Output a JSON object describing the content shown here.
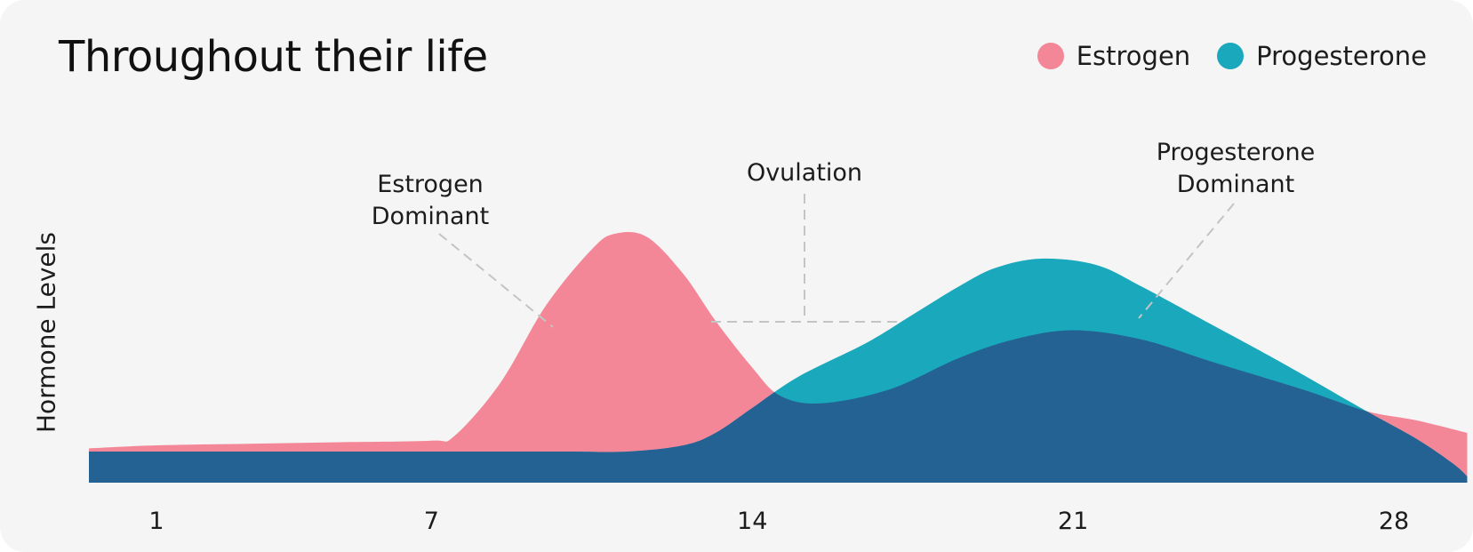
{
  "chart_data": {
    "type": "area",
    "title": "Throughout their life",
    "ylabel": "Hormone Levels",
    "xlabel": "",
    "xlim": [
      1,
      29
    ],
    "ylim": [
      0,
      1
    ],
    "x_ticks": [
      1,
      7,
      14,
      21,
      28
    ],
    "grid": false,
    "legend_position": "top-right",
    "colors": {
      "estrogen": "#f38797",
      "progesterone": "#1aa8bc",
      "overlap": "#236293",
      "annotation_line": "#c4c4c4",
      "background": "#f5f5f5"
    },
    "series": [
      {
        "name": "Estrogen",
        "x": [
          -0.5,
          1,
          3,
          5,
          7,
          7.5,
          8.5,
          9.5,
          10.5,
          11,
          11.7,
          12.5,
          13.2,
          14,
          14.6,
          15.5,
          17,
          18.5,
          19.7,
          21,
          22.5,
          24,
          26,
          27.4,
          28.5,
          29.6
        ],
        "values": [
          0.11,
          0.12,
          0.125,
          0.13,
          0.135,
          0.15,
          0.32,
          0.57,
          0.75,
          0.8,
          0.79,
          0.67,
          0.52,
          0.37,
          0.28,
          0.255,
          0.3,
          0.4,
          0.46,
          0.49,
          0.46,
          0.39,
          0.3,
          0.23,
          0.2,
          0.16
        ]
      },
      {
        "name": "Progesterone",
        "x": [
          -0.5,
          1,
          3,
          5,
          7,
          8.5,
          10,
          11.3,
          12.5,
          13.2,
          14,
          15,
          16.5,
          17.5,
          18.5,
          19.3,
          20.3,
          21.5,
          22.5,
          24,
          25.5,
          27.4,
          28.5,
          29.3,
          29.6
        ],
        "values": [
          0.1,
          0.1,
          0.1,
          0.1,
          0.1,
          0.1,
          0.1,
          0.1,
          0.12,
          0.16,
          0.24,
          0.34,
          0.45,
          0.54,
          0.63,
          0.69,
          0.72,
          0.7,
          0.63,
          0.51,
          0.39,
          0.23,
          0.14,
          0.06,
          0.02
        ]
      }
    ],
    "annotations": [
      {
        "lines": [
          "Estrogen",
          "Dominant"
        ]
      },
      {
        "lines": [
          "Ovulation"
        ]
      },
      {
        "lines": [
          "Progesterone",
          "Dominant"
        ]
      }
    ]
  }
}
